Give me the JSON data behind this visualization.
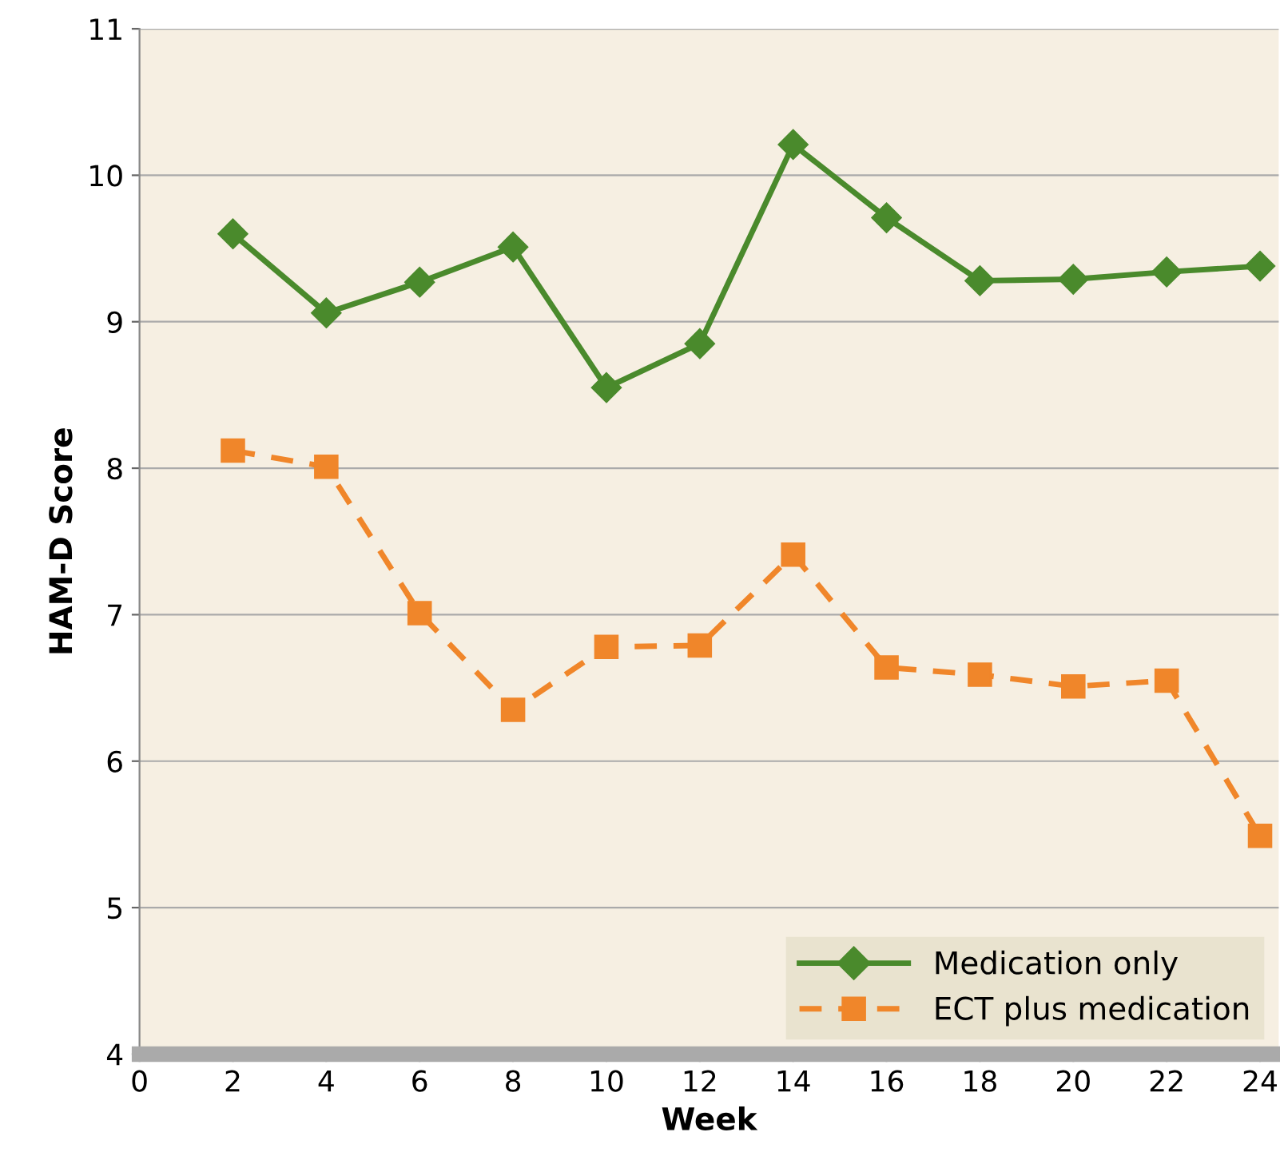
{
  "chart_data": {
    "type": "line",
    "xlabel": "Week",
    "ylabel": "HAM-D Score",
    "x": [
      2,
      4,
      6,
      8,
      10,
      12,
      14,
      16,
      18,
      20,
      22,
      24
    ],
    "series": [
      {
        "name": "Medication only",
        "color": "#4a8a2c",
        "marker": "diamond",
        "line_style": "solid",
        "values": [
          9.6,
          9.06,
          9.27,
          9.51,
          8.55,
          8.85,
          10.21,
          9.71,
          9.28,
          9.29,
          9.34,
          9.38
        ]
      },
      {
        "name": "ECT plus medication",
        "color": "#f0862a",
        "marker": "square",
        "line_style": "dashed",
        "values": [
          8.12,
          8.01,
          7.01,
          6.35,
          6.78,
          6.79,
          7.41,
          6.64,
          6.59,
          6.51,
          6.55,
          5.49
        ]
      }
    ],
    "xlim": [
      0,
      24.4
    ],
    "xticks": [
      0,
      2,
      4,
      6,
      8,
      10,
      12,
      14,
      16,
      18,
      20,
      22,
      24
    ],
    "ylim": [
      4,
      11
    ],
    "yticks": [
      4,
      5,
      6,
      7,
      8,
      9,
      10,
      11
    ],
    "grid": "y",
    "legend": "bottom right"
  }
}
